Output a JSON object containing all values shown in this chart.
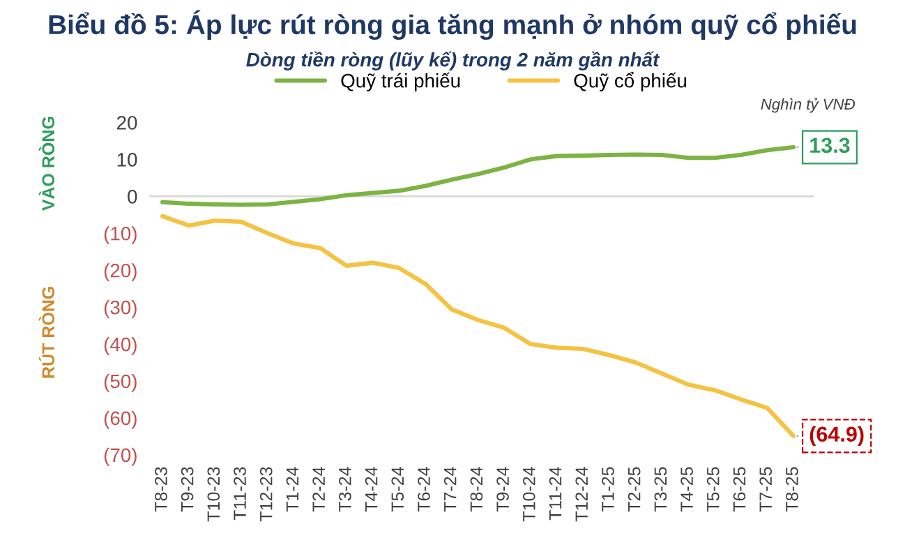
{
  "chart_data": {
    "type": "line",
    "title": "Biểu đồ 5: Áp lực rút ròng gia tăng mạnh ở nhóm quỹ cổ phiếu",
    "subtitle": "Dòng tiền ròng (lũy kế) trong 2 năm gần nhất",
    "ylabel": "VÀO RÒNG",
    "annotations": [
      "RÚT RÒNG",
      "Nghìn tỷ VNĐ"
    ],
    "categories": [
      "T8-23",
      "T9-23",
      "T10-23",
      "T11-23",
      "T12-23",
      "T1-24",
      "T2-24",
      "T3-24",
      "T4-24",
      "T5-24",
      "T6-24",
      "T7-24",
      "T8-24",
      "T9-24",
      "T10-24",
      "T11-24",
      "T12-24",
      "T1-25",
      "T2-25",
      "T3-25",
      "T4-25",
      "T5-25",
      "T6-25",
      "T7-25",
      "T8-25"
    ],
    "series": [
      {
        "name": "Quỹ trái phiếu",
        "color": "#7cb342",
        "values": [
          -1.6,
          -2.0,
          -2.2,
          -2.3,
          -2.2,
          -1.5,
          -0.8,
          0.3,
          0.9,
          1.5,
          2.8,
          4.5,
          6,
          7.8,
          10,
          10.9,
          11,
          11.2,
          11.3,
          11.2,
          10.4,
          10.4,
          11.2,
          12.5,
          13.3
        ],
        "value_labels": [
          null,
          null,
          null,
          null,
          null,
          null,
          null,
          null,
          null,
          null,
          null,
          null,
          null,
          null,
          null,
          null,
          null,
          null,
          null,
          null,
          null,
          null,
          null,
          null,
          "13.3"
        ]
      },
      {
        "name": "Quỹ cổ phiếu",
        "color": "#f5c242",
        "values": [
          -5.4,
          -7.9,
          -6.6,
          -6.9,
          -10,
          -12.8,
          -14,
          -18.8,
          -18,
          -19.4,
          -23.7,
          -30.6,
          -33.5,
          -35.6,
          -40,
          -41,
          -41.3,
          -43,
          -45,
          -48,
          -51,
          -52.5,
          -55,
          -57.3,
          -64.9
        ],
        "value_labels": [
          null,
          null,
          null,
          null,
          null,
          null,
          null,
          null,
          null,
          null,
          null,
          null,
          null,
          null,
          null,
          null,
          null,
          null,
          null,
          null,
          null,
          null,
          null,
          null,
          "(64.9)"
        ]
      }
    ],
    "ylim": [
      -70,
      20
    ],
    "yticks": [
      20,
      10,
      0,
      {
        "value": -10,
        "label": "(10)"
      },
      {
        "value": -20,
        "label": "(20)"
      },
      {
        "value": -30,
        "label": "(30)"
      },
      {
        "value": -40,
        "label": "(40)"
      },
      {
        "value": -50,
        "label": "(50)"
      },
      {
        "value": -60,
        "label": "(60)"
      },
      {
        "value": -70,
        "label": "(70)"
      }
    ],
    "ref_lines": [
      {
        "axis": "y",
        "value": 0,
        "color": "#d9d9d9"
      }
    ],
    "grid": false,
    "legend": "top",
    "marker": "none",
    "line_style": "solid"
  }
}
